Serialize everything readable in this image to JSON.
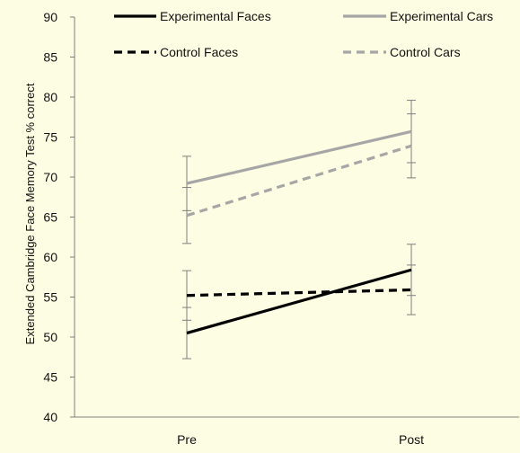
{
  "background": "#fdfde3",
  "chart_data": {
    "type": "line",
    "title": "",
    "xlabel": "",
    "ylabel": "Extended Cambridge Face Memory Test % correct",
    "categories": [
      "Pre",
      "Post"
    ],
    "ylim": [
      40,
      90
    ],
    "yticks": [
      40,
      45,
      50,
      55,
      60,
      65,
      70,
      75,
      80,
      85,
      90
    ],
    "grid": false,
    "legend": "top",
    "series": [
      {
        "name": "Experimental Faces",
        "values": [
          50.5,
          58.4
        ],
        "error": [
          3.2,
          3.2
        ],
        "color": "#000000",
        "dash": "solid"
      },
      {
        "name": "Experimental Cars",
        "values": [
          69.2,
          75.7
        ],
        "error": [
          3.4,
          3.9
        ],
        "color": "#a6a6a6",
        "dash": "solid"
      },
      {
        "name": "Control Faces",
        "values": [
          55.2,
          55.9
        ],
        "error": [
          3.1,
          3.1
        ],
        "color": "#000000",
        "dash": "dashed"
      },
      {
        "name": "Control Cars",
        "values": [
          65.2,
          73.9
        ],
        "error": [
          3.5,
          4.0
        ],
        "color": "#a6a6a6",
        "dash": "dashed"
      }
    ]
  }
}
